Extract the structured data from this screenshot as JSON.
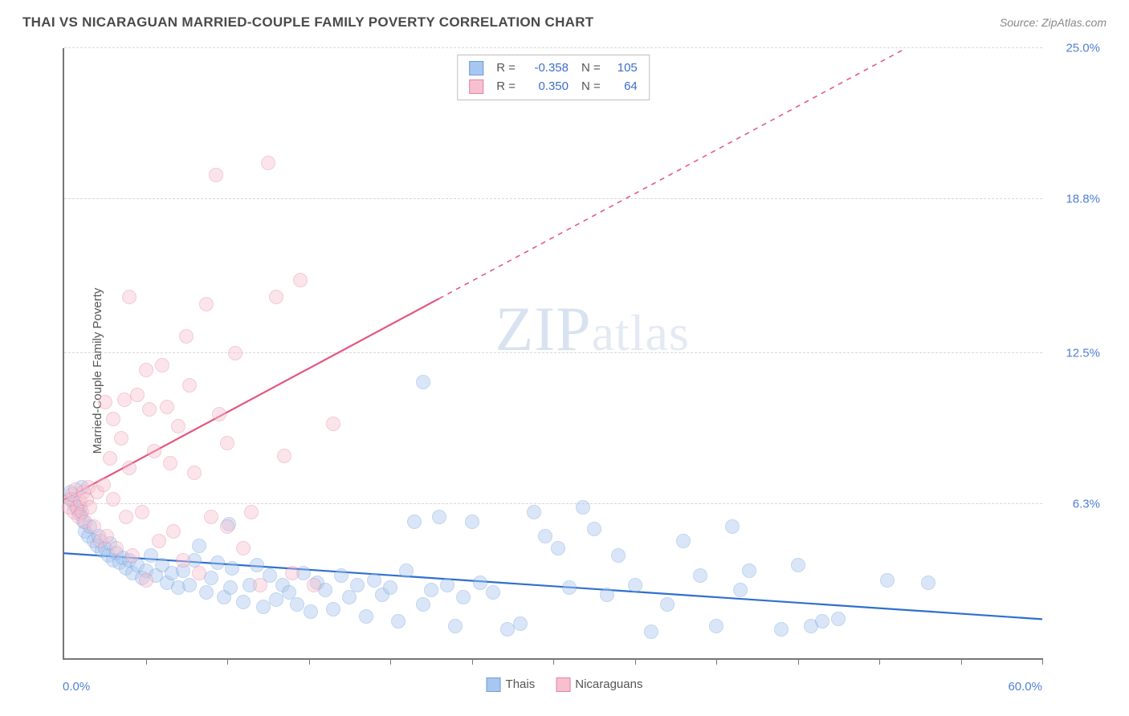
{
  "header": {
    "title": "THAI VS NICARAGUAN MARRIED-COUPLE FAMILY POVERTY CORRELATION CHART",
    "source": "Source: ZipAtlas.com"
  },
  "ylabel": "Married-Couple Family Poverty",
  "watermark": {
    "part1": "ZIP",
    "part2": "atlas"
  },
  "chart": {
    "type": "scatter",
    "xlim": [
      0,
      60
    ],
    "ylim": [
      0,
      25
    ],
    "xtick_positions": [
      5,
      10,
      15,
      20,
      25,
      30,
      35,
      40,
      45,
      50,
      55,
      60
    ],
    "ytick_positions": [
      6.3,
      12.5,
      18.8,
      25.0
    ],
    "ytick_labels": [
      "6.3%",
      "12.5%",
      "18.8%",
      "25.0%"
    ],
    "x_min_label": "0.0%",
    "x_max_label": "60.0%",
    "grid_color": "#d8d8d8",
    "axis_color": "#777777",
    "background_color": "#ffffff",
    "tick_label_color": "#4f7fd6",
    "marker_radius": 9,
    "marker_opacity": 0.42,
    "series": [
      {
        "name": "Thais",
        "fill": "#a8c6ef",
        "stroke": "#6a9edb",
        "trend": {
          "color": "#2f6fd0",
          "width": 2.2,
          "x1": 0,
          "y1": 4.3,
          "x2": 60,
          "y2": 1.6,
          "dash_after_x": null
        },
        "points": [
          [
            0.4,
            6.8
          ],
          [
            0.5,
            6.5
          ],
          [
            0.6,
            6.3
          ],
          [
            0.8,
            6.1
          ],
          [
            1.0,
            5.9
          ],
          [
            1.0,
            6.2
          ],
          [
            1.1,
            7.0
          ],
          [
            1.2,
            5.6
          ],
          [
            1.3,
            5.2
          ],
          [
            1.5,
            5.0
          ],
          [
            1.6,
            5.4
          ],
          [
            1.8,
            4.8
          ],
          [
            2.0,
            4.6
          ],
          [
            2.1,
            5.0
          ],
          [
            2.3,
            4.4
          ],
          [
            2.5,
            4.5
          ],
          [
            2.7,
            4.2
          ],
          [
            2.8,
            4.7
          ],
          [
            3.0,
            4.0
          ],
          [
            3.2,
            4.3
          ],
          [
            3.4,
            3.9
          ],
          [
            3.6,
            4.1
          ],
          [
            3.8,
            3.7
          ],
          [
            4.0,
            4.0
          ],
          [
            4.2,
            3.5
          ],
          [
            4.5,
            3.8
          ],
          [
            4.8,
            3.3
          ],
          [
            5.0,
            3.6
          ],
          [
            5.3,
            4.2
          ],
          [
            5.6,
            3.4
          ],
          [
            6.0,
            3.8
          ],
          [
            6.3,
            3.1
          ],
          [
            6.6,
            3.5
          ],
          [
            7.0,
            2.9
          ],
          [
            7.3,
            3.6
          ],
          [
            7.7,
            3.0
          ],
          [
            8.0,
            4.0
          ],
          [
            8.3,
            4.6
          ],
          [
            8.7,
            2.7
          ],
          [
            9.0,
            3.3
          ],
          [
            9.4,
            3.9
          ],
          [
            9.8,
            2.5
          ],
          [
            10.1,
            5.5
          ],
          [
            10.3,
            3.7
          ],
          [
            10.2,
            2.9
          ],
          [
            11.0,
            2.3
          ],
          [
            11.4,
            3.0
          ],
          [
            11.8,
            3.8
          ],
          [
            12.2,
            2.1
          ],
          [
            12.6,
            3.4
          ],
          [
            13.0,
            2.4
          ],
          [
            13.4,
            3.0
          ],
          [
            13.8,
            2.7
          ],
          [
            14.3,
            2.2
          ],
          [
            14.7,
            3.5
          ],
          [
            15.1,
            1.9
          ],
          [
            15.5,
            3.1
          ],
          [
            16.0,
            2.8
          ],
          [
            16.5,
            2.0
          ],
          [
            17.0,
            3.4
          ],
          [
            17.5,
            2.5
          ],
          [
            18.0,
            3.0
          ],
          [
            18.5,
            1.7
          ],
          [
            19.0,
            3.2
          ],
          [
            19.5,
            2.6
          ],
          [
            20.0,
            2.9
          ],
          [
            20.5,
            1.5
          ],
          [
            21.0,
            3.6
          ],
          [
            21.5,
            5.6
          ],
          [
            22.0,
            2.2
          ],
          [
            22.5,
            2.8
          ],
          [
            23.0,
            5.8
          ],
          [
            23.5,
            3.0
          ],
          [
            24.0,
            1.3
          ],
          [
            24.5,
            2.5
          ],
          [
            25.0,
            5.6
          ],
          [
            25.5,
            3.1
          ],
          [
            26.3,
            2.7
          ],
          [
            27.2,
            1.2
          ],
          [
            28.0,
            1.4
          ],
          [
            28.8,
            6.0
          ],
          [
            29.5,
            5.0
          ],
          [
            30.3,
            4.5
          ],
          [
            31.0,
            2.9
          ],
          [
            31.8,
            6.2
          ],
          [
            32.5,
            5.3
          ],
          [
            33.3,
            2.6
          ],
          [
            34.0,
            4.2
          ],
          [
            35.0,
            3.0
          ],
          [
            36.0,
            1.1
          ],
          [
            37.0,
            2.2
          ],
          [
            38.0,
            4.8
          ],
          [
            39.0,
            3.4
          ],
          [
            40.0,
            1.3
          ],
          [
            41.0,
            5.4
          ],
          [
            41.5,
            2.8
          ],
          [
            42.0,
            3.6
          ],
          [
            44.0,
            1.2
          ],
          [
            45.0,
            3.8
          ],
          [
            45.8,
            1.3
          ],
          [
            46.5,
            1.5
          ],
          [
            47.5,
            1.6
          ],
          [
            50.5,
            3.2
          ],
          [
            53.0,
            3.1
          ],
          [
            22.0,
            11.3
          ]
        ]
      },
      {
        "name": "Nicaraguans",
        "fill": "#f6c0cf",
        "stroke": "#e583a2",
        "trend": {
          "color": "#e4567f",
          "width": 2.2,
          "x1": 0,
          "y1": 6.5,
          "x2": 55,
          "y2": 26.2,
          "dash_after_x": 23
        },
        "points": [
          [
            0.3,
            6.2
          ],
          [
            0.4,
            6.5
          ],
          [
            0.5,
            6.7
          ],
          [
            0.6,
            6.0
          ],
          [
            0.7,
            6.9
          ],
          [
            0.8,
            6.2
          ],
          [
            0.9,
            5.8
          ],
          [
            1.0,
            6.4
          ],
          [
            1.1,
            6.0
          ],
          [
            1.2,
            6.8
          ],
          [
            1.3,
            5.6
          ],
          [
            1.4,
            6.5
          ],
          [
            1.5,
            7.0
          ],
          [
            1.6,
            6.2
          ],
          [
            1.8,
            5.4
          ],
          [
            2.0,
            6.8
          ],
          [
            2.2,
            4.8
          ],
          [
            2.4,
            7.1
          ],
          [
            2.6,
            5.0
          ],
          [
            2.8,
            8.2
          ],
          [
            3.0,
            6.5
          ],
          [
            3.2,
            4.5
          ],
          [
            3.5,
            9.0
          ],
          [
            3.7,
            10.6
          ],
          [
            3.8,
            5.8
          ],
          [
            4.0,
            7.8
          ],
          [
            4.2,
            4.2
          ],
          [
            4.5,
            10.8
          ],
          [
            4.8,
            6.0
          ],
          [
            5.0,
            3.2
          ],
          [
            5.2,
            10.2
          ],
          [
            5.5,
            8.5
          ],
          [
            5.8,
            4.8
          ],
          [
            6.0,
            12.0
          ],
          [
            6.3,
            10.3
          ],
          [
            6.7,
            5.2
          ],
          [
            7.0,
            9.5
          ],
          [
            7.3,
            4.0
          ],
          [
            7.7,
            11.2
          ],
          [
            8.0,
            7.6
          ],
          [
            8.3,
            3.5
          ],
          [
            8.7,
            14.5
          ],
          [
            9.0,
            5.8
          ],
          [
            9.5,
            10.0
          ],
          [
            10.0,
            8.8
          ],
          [
            9.3,
            19.8
          ],
          [
            10.5,
            12.5
          ],
          [
            11.0,
            4.5
          ],
          [
            11.5,
            6.0
          ],
          [
            12.0,
            3.0
          ],
          [
            12.5,
            20.3
          ],
          [
            13.0,
            14.8
          ],
          [
            13.5,
            8.3
          ],
          [
            14.0,
            3.5
          ],
          [
            14.5,
            15.5
          ],
          [
            15.3,
            3.0
          ],
          [
            16.5,
            9.6
          ],
          [
            10.0,
            5.4
          ],
          [
            4.0,
            14.8
          ],
          [
            6.5,
            8.0
          ],
          [
            5.0,
            11.8
          ],
          [
            7.5,
            13.2
          ],
          [
            3.0,
            9.8
          ],
          [
            2.5,
            10.5
          ]
        ]
      }
    ]
  },
  "legend_stats": [
    {
      "swatch_fill": "#a8c6ef",
      "swatch_stroke": "#6a9edb",
      "r": "-0.358",
      "n": "105"
    },
    {
      "swatch_fill": "#f6c0cf",
      "swatch_stroke": "#e583a2",
      "r": "0.350",
      "n": "64"
    }
  ],
  "legend_bottom": [
    {
      "swatch_fill": "#a8c6ef",
      "swatch_stroke": "#6a9edb",
      "label": "Thais"
    },
    {
      "swatch_fill": "#f6c0cf",
      "swatch_stroke": "#e583a2",
      "label": "Nicaraguans"
    }
  ],
  "legend_labels": {
    "r": "R =",
    "n": "N ="
  }
}
